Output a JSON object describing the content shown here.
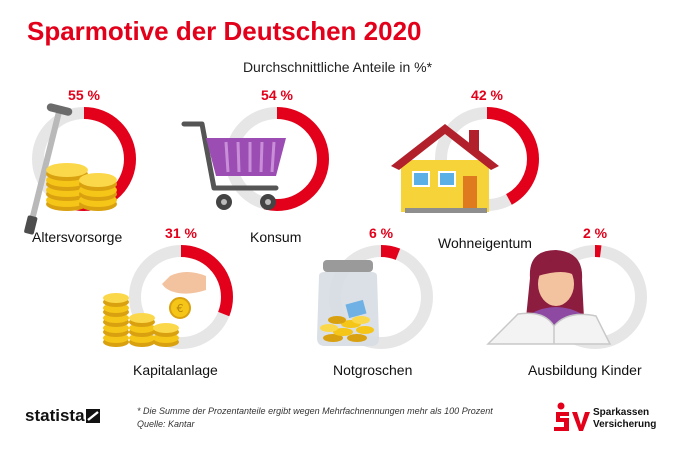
{
  "chart_data": {
    "type": "donut",
    "title": "Sparmotive der Deutschen 2020",
    "subtitle": "Durchschnittliche Anteile in %*",
    "unit": "%",
    "categories": [
      "Altersvorsorge",
      "Konsum",
      "Wohneigentum",
      "Kapitalanlage",
      "Notgroschen",
      "Ausbildung Kinder"
    ],
    "values": [
      55,
      54,
      42,
      31,
      6,
      2
    ],
    "value_labels": [
      "55 %",
      "54 %",
      "42 %",
      "31 %",
      "6 %",
      "2 %"
    ],
    "ylim": [
      0,
      100
    ]
  },
  "footnote": {
    "line1": "* Die Summe der Prozentanteile ergibt wegen Mehrfachnennungen mehr als 100 Prozent",
    "line2": "Quelle: Kantar"
  },
  "branding": {
    "statista": "statista",
    "sv_line1": "Sparkassen",
    "sv_line2": "Versicherung"
  },
  "colors": {
    "accent": "#e2001a",
    "ring_track": "#e6e6e6",
    "coin": "#f5c518"
  }
}
